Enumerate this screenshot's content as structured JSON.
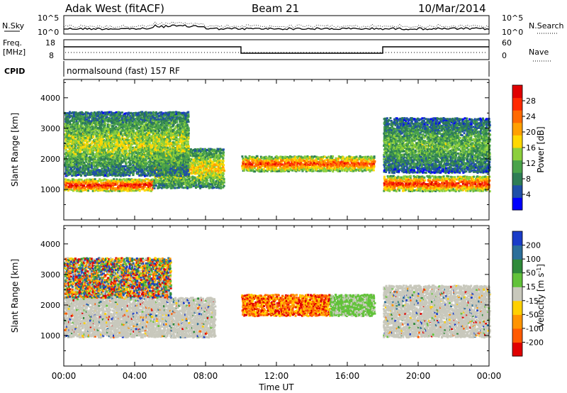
{
  "header": {
    "station": "Adak West (fitACF)",
    "beam": "Beam 21",
    "date": "10/Mar/2014"
  },
  "noise_panel": {
    "left_label": "N.Sky",
    "right_label": "N.Search",
    "left_ticks": [
      "10^5",
      "10^0"
    ],
    "right_ticks": [
      "10^5",
      "10^0"
    ]
  },
  "freq_panel": {
    "left_label_top": "Freq.",
    "left_label_bottom": "[MHz]",
    "right_label": "Nave",
    "left_ticks": [
      "18",
      "8"
    ],
    "right_ticks": [
      "60",
      "0"
    ],
    "freq_steps": [
      {
        "from_h": 0,
        "to_h": 10,
        "level": "high"
      },
      {
        "from_h": 10,
        "to_h": 18,
        "level": "low"
      },
      {
        "from_h": 18,
        "to_h": 24,
        "level": "high"
      }
    ]
  },
  "cpid_panel": {
    "label": "CPID",
    "text": "normalsound (fast) 157 RF"
  },
  "chart_data": [
    {
      "type": "heatmap",
      "name": "power",
      "xlabel": "Time UT",
      "ylabel": "Slant Range [km]",
      "xlim": [
        0,
        24
      ],
      "ylim": [
        0,
        4600
      ],
      "x_ticks": [
        "00:00",
        "04:00",
        "08:00",
        "12:00",
        "16:00",
        "20:00",
        "00:00"
      ],
      "y_ticks": [
        "1000",
        "2000",
        "3000",
        "4000"
      ],
      "colorbar": {
        "label": "Power [dB]",
        "ticks": [
          "4",
          "8",
          "12",
          "16",
          "20",
          "24",
          "28"
        ],
        "colors": [
          "#0000ff",
          "#1f4fa8",
          "#2e7d55",
          "#4aa34a",
          "#8ccf3c",
          "#ffd800",
          "#ffa000",
          "#ff6a00",
          "#ff2a00",
          "#e00000"
        ]
      },
      "echo_bands": [
        {
          "t0": 0,
          "t1": 5,
          "r0": 900,
          "r1": 1300,
          "level": 0.95
        },
        {
          "t0": 5,
          "t1": 9,
          "r0": 1000,
          "r1": 2300,
          "level": 0.6
        },
        {
          "t0": 10,
          "t1": 17.5,
          "r0": 1550,
          "r1": 2050,
          "level": 0.85
        },
        {
          "t0": 18,
          "t1": 24,
          "r0": 900,
          "r1": 1400,
          "level": 0.9
        },
        {
          "t0": 18,
          "t1": 24,
          "r0": 1500,
          "r1": 3300,
          "level": 0.4
        },
        {
          "t0": 0,
          "t1": 7,
          "r0": 1400,
          "r1": 3500,
          "level": 0.5
        }
      ]
    },
    {
      "type": "heatmap",
      "name": "velocity",
      "xlabel": "Time UT",
      "ylabel": "Slant Range [km]",
      "xlim": [
        0,
        24
      ],
      "ylim": [
        0,
        4600
      ],
      "x_ticks": [
        "00:00",
        "04:00",
        "08:00",
        "12:00",
        "16:00",
        "20:00",
        "00:00"
      ],
      "y_ticks": [
        "1000",
        "2000",
        "3000",
        "4000"
      ],
      "colorbar": {
        "label": "Velocity [m s-1]",
        "label_main": "Velocity [m s",
        "label_sup": "-1",
        "label_end": "]",
        "ticks": [
          "200",
          "100",
          "50",
          "15",
          "-15",
          "-50",
          "-100",
          "-200"
        ],
        "colors": [
          "#1a3cc8",
          "#2b6e9a",
          "#2f8a3a",
          "#62c23a",
          "#c8c8bc",
          "#ffd000",
          "#ff9400",
          "#ff5a00",
          "#e00000"
        ]
      },
      "echo_bands": [
        {
          "t0": 0,
          "t1": 8.5,
          "r0": 900,
          "r1": 2200,
          "vel": "ground"
        },
        {
          "t0": 10,
          "t1": 15,
          "r0": 1600,
          "r1": 2300,
          "vel": "negative"
        },
        {
          "t0": 15,
          "t1": 17.5,
          "r0": 1600,
          "r1": 2300,
          "vel": "positive"
        },
        {
          "t0": 18,
          "t1": 24,
          "r0": 900,
          "r1": 2600,
          "vel": "ground"
        },
        {
          "t0": 0,
          "t1": 6,
          "r0": 2200,
          "r1": 3500,
          "vel": "mixed"
        }
      ]
    }
  ]
}
